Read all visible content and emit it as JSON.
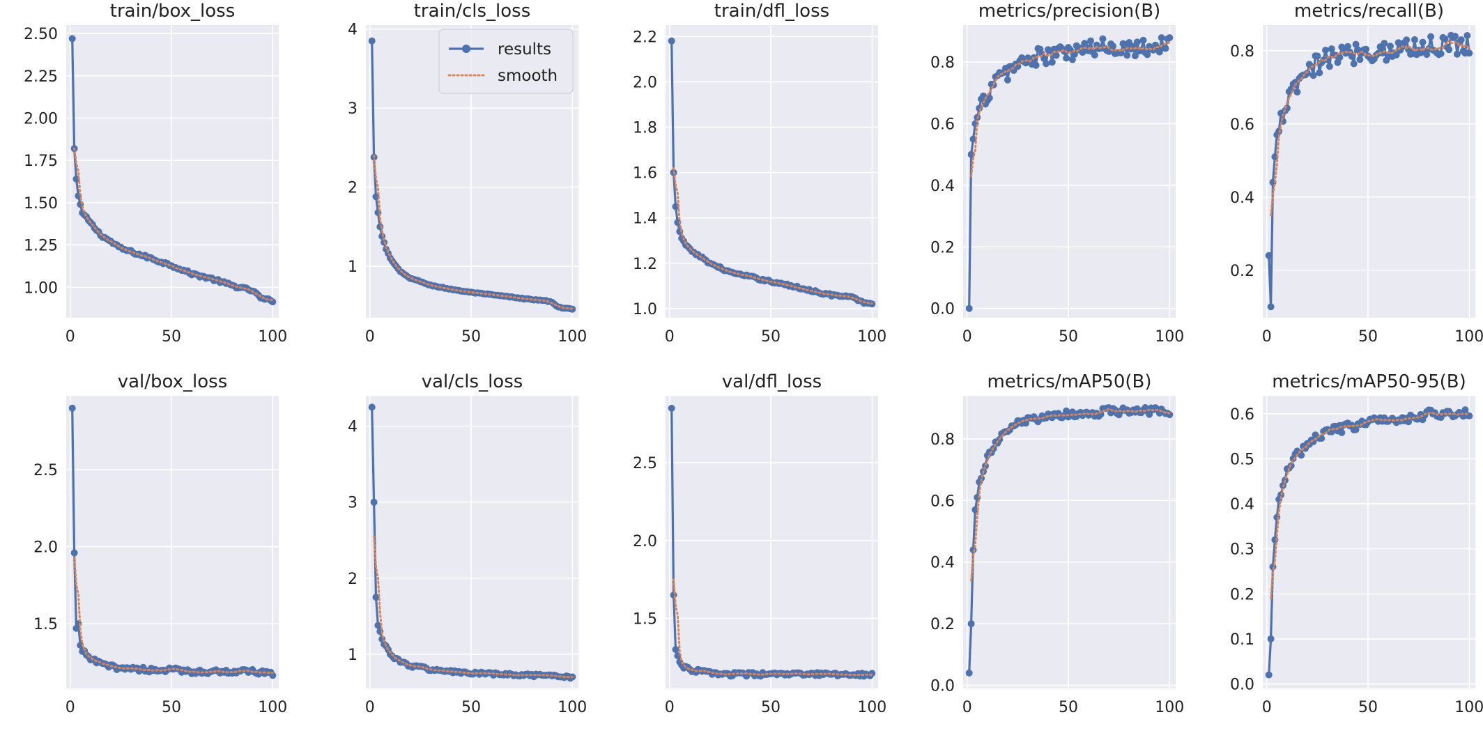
{
  "style": {
    "plot_bg": "#eaeaf2",
    "grid_color": "#ffffff",
    "results_color": "#4c72b0",
    "smooth_color": "#dd8452"
  },
  "legend": {
    "placement": "top-right",
    "panel": "train/cls_loss",
    "entries": [
      "results",
      "smooth"
    ]
  },
  "chart_data": [
    {
      "type": "line",
      "title": "train/box_loss",
      "xlim": [
        -2,
        103
      ],
      "ylim": [
        0.82,
        2.55
      ],
      "x_ticks": [
        0,
        50,
        100
      ],
      "y_ticks": [
        1.0,
        1.25,
        1.5,
        1.75,
        2.0,
        2.25,
        2.5
      ],
      "y_tick_labels": [
        "1.00",
        "1.25",
        "1.50",
        "1.75",
        "2.00",
        "2.25",
        "2.50"
      ],
      "grid": true,
      "anchors": [
        [
          1,
          2.47
        ],
        [
          2,
          1.82
        ],
        [
          3,
          1.64
        ],
        [
          4,
          1.54
        ],
        [
          5,
          1.49
        ],
        [
          6,
          1.44
        ],
        [
          8,
          1.41
        ],
        [
          10,
          1.38
        ],
        [
          15,
          1.31
        ],
        [
          20,
          1.27
        ],
        [
          25,
          1.23
        ],
        [
          30,
          1.21
        ],
        [
          40,
          1.17
        ],
        [
          50,
          1.13
        ],
        [
          60,
          1.08
        ],
        [
          70,
          1.05
        ],
        [
          80,
          1.01
        ],
        [
          90,
          0.98
        ],
        [
          95,
          0.93
        ],
        [
          100,
          0.92
        ]
      ],
      "noise": 0.008,
      "smooth_start": [
        2,
        1.82
      ]
    },
    {
      "type": "line",
      "title": "train/cls_loss",
      "xlim": [
        -2,
        103
      ],
      "ylim": [
        0.35,
        4.05
      ],
      "x_ticks": [
        0,
        50,
        100
      ],
      "y_ticks": [
        1,
        2,
        3,
        4
      ],
      "y_tick_labels": [
        "1",
        "2",
        "3",
        "4"
      ],
      "grid": true,
      "anchors": [
        [
          1,
          3.85
        ],
        [
          2,
          2.38
        ],
        [
          3,
          1.88
        ],
        [
          4,
          1.68
        ],
        [
          5,
          1.5
        ],
        [
          6,
          1.38
        ],
        [
          8,
          1.22
        ],
        [
          10,
          1.1
        ],
        [
          15,
          0.93
        ],
        [
          20,
          0.85
        ],
        [
          30,
          0.76
        ],
        [
          40,
          0.71
        ],
        [
          50,
          0.67
        ],
        [
          60,
          0.64
        ],
        [
          70,
          0.61
        ],
        [
          80,
          0.58
        ],
        [
          88,
          0.56
        ],
        [
          90,
          0.55
        ],
        [
          93,
          0.48
        ],
        [
          100,
          0.46
        ]
      ],
      "noise": 0.006,
      "smooth_start": [
        2,
        2.4
      ]
    },
    {
      "type": "line",
      "title": "train/dfl_loss",
      "xlim": [
        -2,
        103
      ],
      "ylim": [
        0.96,
        2.25
      ],
      "x_ticks": [
        0,
        50,
        100
      ],
      "y_ticks": [
        1.0,
        1.2,
        1.4,
        1.6,
        1.8,
        2.0,
        2.2
      ],
      "y_tick_labels": [
        "1.0",
        "1.2",
        "1.4",
        "1.6",
        "1.8",
        "2.0",
        "2.2"
      ],
      "grid": true,
      "anchors": [
        [
          1,
          2.18
        ],
        [
          2,
          1.6
        ],
        [
          3,
          1.45
        ],
        [
          4,
          1.38
        ],
        [
          5,
          1.34
        ],
        [
          6,
          1.31
        ],
        [
          8,
          1.28
        ],
        [
          10,
          1.26
        ],
        [
          15,
          1.23
        ],
        [
          20,
          1.2
        ],
        [
          25,
          1.18
        ],
        [
          30,
          1.16
        ],
        [
          40,
          1.14
        ],
        [
          50,
          1.12
        ],
        [
          60,
          1.1
        ],
        [
          70,
          1.08
        ],
        [
          80,
          1.06
        ],
        [
          90,
          1.05
        ],
        [
          95,
          1.03
        ],
        [
          100,
          1.02
        ]
      ],
      "noise": 0.005,
      "smooth_start": [
        2,
        1.62
      ]
    },
    {
      "type": "line",
      "title": "metrics/precision(B)",
      "xlim": [
        -2,
        103
      ],
      "ylim": [
        -0.03,
        0.92
      ],
      "x_ticks": [
        0,
        50,
        100
      ],
      "y_ticks": [
        0.0,
        0.2,
        0.4,
        0.6,
        0.8
      ],
      "y_tick_labels": [
        "0.0",
        "0.2",
        "0.4",
        "0.6",
        "0.8"
      ],
      "grid": true,
      "anchors": [
        [
          1,
          0.0
        ],
        [
          2,
          0.5
        ],
        [
          3,
          0.55
        ],
        [
          4,
          0.6
        ],
        [
          5,
          0.62
        ],
        [
          6,
          0.65
        ],
        [
          8,
          0.67
        ],
        [
          10,
          0.7
        ],
        [
          15,
          0.74
        ],
        [
          20,
          0.77
        ],
        [
          25,
          0.79
        ],
        [
          30,
          0.81
        ],
        [
          40,
          0.82
        ],
        [
          50,
          0.83
        ],
        [
          60,
          0.84
        ],
        [
          70,
          0.85
        ],
        [
          80,
          0.85
        ],
        [
          90,
          0.85
        ],
        [
          100,
          0.86
        ]
      ],
      "noise": 0.03,
      "smooth_start": [
        2,
        0.43
      ]
    },
    {
      "type": "line",
      "title": "metrics/recall(B)",
      "xlim": [
        -2,
        103
      ],
      "ylim": [
        0.07,
        0.87
      ],
      "x_ticks": [
        0,
        50,
        100
      ],
      "y_ticks": [
        0.2,
        0.4,
        0.6,
        0.8
      ],
      "y_tick_labels": [
        "0.2",
        "0.4",
        "0.6",
        "0.8"
      ],
      "grid": true,
      "anchors": [
        [
          1,
          0.24
        ],
        [
          2,
          0.1
        ],
        [
          3,
          0.44
        ],
        [
          4,
          0.51
        ],
        [
          5,
          0.57
        ],
        [
          6,
          0.58
        ],
        [
          8,
          0.63
        ],
        [
          10,
          0.66
        ],
        [
          15,
          0.7
        ],
        [
          20,
          0.74
        ],
        [
          25,
          0.76
        ],
        [
          30,
          0.78
        ],
        [
          40,
          0.79
        ],
        [
          50,
          0.8
        ],
        [
          60,
          0.8
        ],
        [
          70,
          0.81
        ],
        [
          80,
          0.81
        ],
        [
          90,
          0.82
        ],
        [
          100,
          0.82
        ]
      ],
      "noise": 0.03,
      "smooth_start": [
        2,
        0.35
      ]
    },
    {
      "type": "line",
      "title": "val/box_loss",
      "xlim": [
        -2,
        103
      ],
      "ylim": [
        1.08,
        2.98
      ],
      "x_ticks": [
        0,
        50,
        100
      ],
      "y_ticks": [
        1.5,
        2.0,
        2.5
      ],
      "y_tick_labels": [
        "1.5",
        "2.0",
        "2.5"
      ],
      "grid": true,
      "anchors": [
        [
          1,
          2.9
        ],
        [
          2,
          1.96
        ],
        [
          3,
          1.47
        ],
        [
          4,
          1.5
        ],
        [
          5,
          1.36
        ],
        [
          6,
          1.32
        ],
        [
          8,
          1.3
        ],
        [
          10,
          1.27
        ],
        [
          15,
          1.24
        ],
        [
          20,
          1.22
        ],
        [
          30,
          1.21
        ],
        [
          40,
          1.2
        ],
        [
          50,
          1.2
        ],
        [
          60,
          1.19
        ],
        [
          70,
          1.19
        ],
        [
          80,
          1.19
        ],
        [
          90,
          1.19
        ],
        [
          100,
          1.17
        ]
      ],
      "noise": 0.015,
      "smooth_start": [
        2,
        1.93
      ]
    },
    {
      "type": "line",
      "title": "val/cls_loss",
      "xlim": [
        -2,
        103
      ],
      "ylim": [
        0.55,
        4.4
      ],
      "x_ticks": [
        0,
        50,
        100
      ],
      "y_ticks": [
        1,
        2,
        3,
        4
      ],
      "y_tick_labels": [
        "1",
        "2",
        "3",
        "4"
      ],
      "grid": true,
      "anchors": [
        [
          1,
          4.25
        ],
        [
          2,
          3.0
        ],
        [
          3,
          1.75
        ],
        [
          4,
          1.38
        ],
        [
          5,
          1.3
        ],
        [
          6,
          1.2
        ],
        [
          8,
          1.1
        ],
        [
          10,
          1.0
        ],
        [
          15,
          0.9
        ],
        [
          20,
          0.85
        ],
        [
          30,
          0.8
        ],
        [
          40,
          0.77
        ],
        [
          50,
          0.75
        ],
        [
          60,
          0.74
        ],
        [
          70,
          0.73
        ],
        [
          80,
          0.72
        ],
        [
          90,
          0.71
        ],
        [
          100,
          0.7
        ]
      ],
      "noise": 0.02,
      "smooth_start": [
        2,
        2.55
      ]
    },
    {
      "type": "line",
      "title": "val/dfl_loss",
      "xlim": [
        -2,
        103
      ],
      "ylim": [
        1.05,
        2.93
      ],
      "x_ticks": [
        0,
        50,
        100
      ],
      "y_ticks": [
        1.5,
        2.0,
        2.5
      ],
      "y_tick_labels": [
        "1.5",
        "2.0",
        "2.5"
      ],
      "grid": true,
      "anchors": [
        [
          1,
          2.85
        ],
        [
          2,
          1.65
        ],
        [
          3,
          1.3
        ],
        [
          4,
          1.26
        ],
        [
          5,
          1.22
        ],
        [
          6,
          1.2
        ],
        [
          8,
          1.18
        ],
        [
          10,
          1.17
        ],
        [
          15,
          1.16
        ],
        [
          20,
          1.15
        ],
        [
          30,
          1.14
        ],
        [
          40,
          1.14
        ],
        [
          50,
          1.14
        ],
        [
          60,
          1.14
        ],
        [
          70,
          1.14
        ],
        [
          80,
          1.14
        ],
        [
          90,
          1.14
        ],
        [
          100,
          1.14
        ]
      ],
      "noise": 0.012,
      "smooth_start": [
        2,
        1.75
      ]
    },
    {
      "type": "line",
      "title": "metrics/mAP50(B)",
      "xlim": [
        -2,
        103
      ],
      "ylim": [
        -0.01,
        0.94
      ],
      "x_ticks": [
        0,
        50,
        100
      ],
      "y_ticks": [
        0.0,
        0.2,
        0.4,
        0.6,
        0.8
      ],
      "y_tick_labels": [
        "0.0",
        "0.2",
        "0.4",
        "0.6",
        "0.8"
      ],
      "grid": true,
      "anchors": [
        [
          1,
          0.04
        ],
        [
          2,
          0.2
        ],
        [
          3,
          0.44
        ],
        [
          4,
          0.57
        ],
        [
          5,
          0.61
        ],
        [
          6,
          0.66
        ],
        [
          8,
          0.7
        ],
        [
          10,
          0.74
        ],
        [
          15,
          0.79
        ],
        [
          20,
          0.83
        ],
        [
          25,
          0.85
        ],
        [
          30,
          0.86
        ],
        [
          40,
          0.87
        ],
        [
          50,
          0.88
        ],
        [
          60,
          0.88
        ],
        [
          70,
          0.89
        ],
        [
          80,
          0.89
        ],
        [
          90,
          0.89
        ],
        [
          100,
          0.89
        ]
      ],
      "noise": 0.012,
      "smooth_start": [
        2,
        0.34
      ]
    },
    {
      "type": "line",
      "title": "metrics/mAP50-95(B)",
      "xlim": [
        -2,
        103
      ],
      "ylim": [
        -0.01,
        0.64
      ],
      "x_ticks": [
        0,
        50,
        100
      ],
      "y_ticks": [
        0.0,
        0.1,
        0.2,
        0.3,
        0.4,
        0.5,
        0.6
      ],
      "y_tick_labels": [
        "0.0",
        "0.1",
        "0.2",
        "0.3",
        "0.4",
        "0.5",
        "0.6"
      ],
      "grid": true,
      "anchors": [
        [
          1,
          0.02
        ],
        [
          2,
          0.1
        ],
        [
          3,
          0.26
        ],
        [
          4,
          0.32
        ],
        [
          5,
          0.37
        ],
        [
          6,
          0.41
        ],
        [
          8,
          0.44
        ],
        [
          10,
          0.47
        ],
        [
          15,
          0.51
        ],
        [
          20,
          0.53
        ],
        [
          25,
          0.55
        ],
        [
          30,
          0.56
        ],
        [
          40,
          0.57
        ],
        [
          50,
          0.58
        ],
        [
          60,
          0.59
        ],
        [
          70,
          0.59
        ],
        [
          80,
          0.6
        ],
        [
          90,
          0.6
        ],
        [
          100,
          0.6
        ]
      ],
      "noise": 0.01,
      "smooth_start": [
        2,
        0.19
      ]
    }
  ]
}
